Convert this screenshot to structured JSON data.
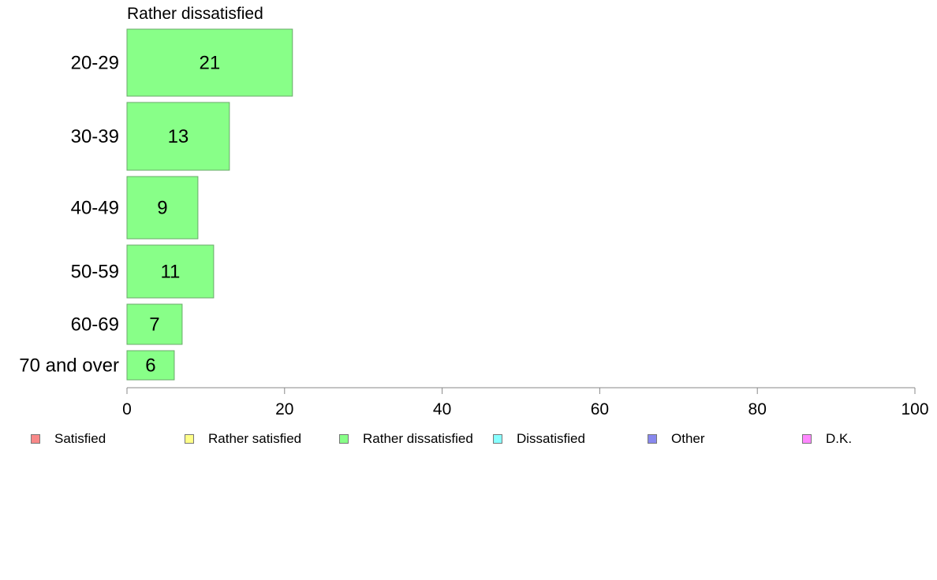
{
  "chart_data": {
    "type": "bar",
    "orientation": "horizontal",
    "title": "Rather dissatisfied",
    "categories": [
      "20-29",
      "30-39",
      "40-49",
      "50-59",
      "60-69",
      "70 and over"
    ],
    "values": [
      21,
      13,
      9,
      11,
      7,
      6
    ],
    "xlim": [
      0,
      100
    ],
    "xticks": [
      0,
      20,
      40,
      60,
      80,
      100
    ],
    "bar_color": "#88ff88",
    "legend": {
      "placement": "bottom",
      "items": [
        {
          "label": "Satisfied",
          "color": "#f88888"
        },
        {
          "label": "Rather satisfied",
          "color": "#ffff88"
        },
        {
          "label": "Rather dissatisfied",
          "color": "#88ff88"
        },
        {
          "label": "Dissatisfied",
          "color": "#88ffff"
        },
        {
          "label": "Other",
          "color": "#8888ee"
        },
        {
          "label": "D.K.",
          "color": "#ff88ff"
        }
      ]
    }
  }
}
